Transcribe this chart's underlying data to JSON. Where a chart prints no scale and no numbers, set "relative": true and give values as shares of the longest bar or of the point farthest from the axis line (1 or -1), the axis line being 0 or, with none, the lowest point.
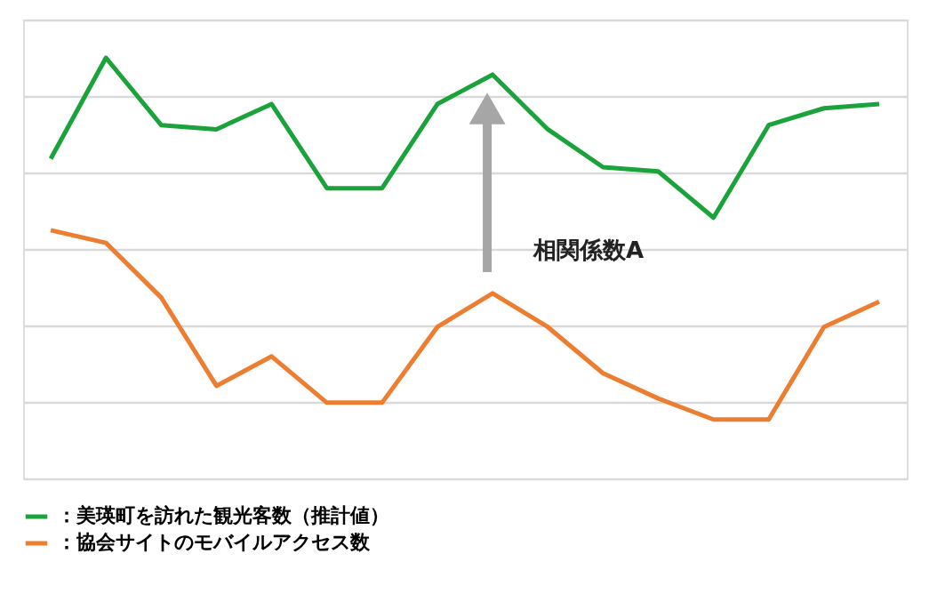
{
  "chart_data": {
    "type": "line",
    "relative": true,
    "grid": "y",
    "legend": "bottom",
    "categories": [
      null,
      null,
      null,
      null,
      null,
      null,
      null,
      null,
      null,
      null,
      null,
      null,
      null,
      null,
      null,
      null
    ],
    "series": [
      {
        "name": "：美瑛町を訪れた観光客数（推計値）",
        "color": "#1aa33a",
        "values": [
          0.76,
          1.0,
          0.84,
          0.83,
          0.89,
          0.69,
          0.69,
          0.89,
          0.96,
          0.83,
          0.74,
          0.73,
          0.62,
          0.84,
          0.88,
          0.89
        ]
      },
      {
        "name": "：協会サイトのモバイルアクセス数",
        "color": "#ed7d31",
        "values": [
          0.59,
          0.56,
          0.43,
          0.22,
          0.29,
          0.18,
          0.18,
          0.36,
          0.44,
          0.36,
          0.25,
          0.19,
          0.14,
          0.14,
          0.36,
          0.42
        ]
      }
    ],
    "annotations": [
      "相関係数A"
    ]
  }
}
